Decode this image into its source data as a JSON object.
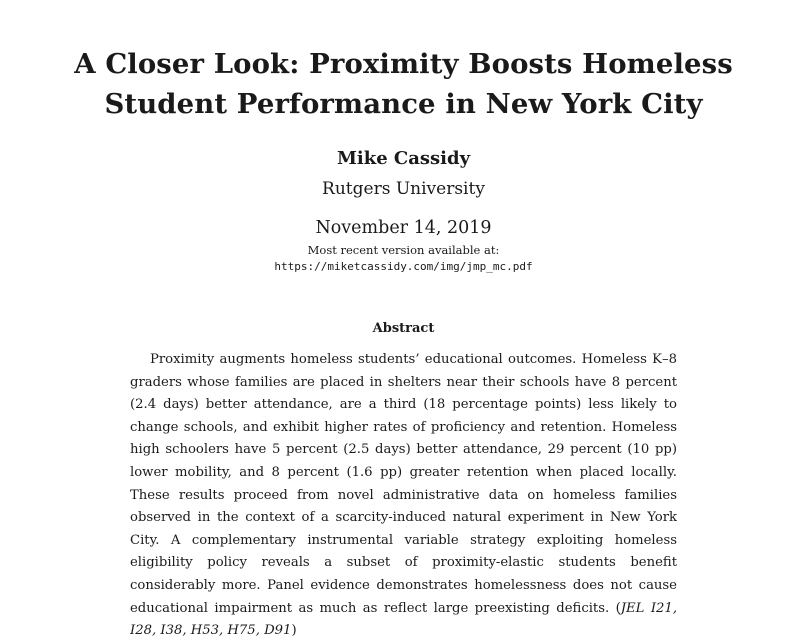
{
  "paper": {
    "title": "A Closer Look: Proximity Boosts Homeless Student Performance in New York City",
    "author": "Mike Cassidy",
    "affiliation": "Rutgers University",
    "date": "November 14, 2019",
    "version_note": "Most recent version available at:",
    "version_url": "https://miketcassidy.com/img/jmp_mc.pdf"
  },
  "abstract": {
    "heading": "Abstract",
    "body": "Proximity augments homeless students’ educational outcomes. Homeless K–8 graders whose families are placed in shelters near their schools have 8 percent (2.4 days) better attendance, are a third (18 percentage points) less likely to change schools, and exhibit higher rates of proficiency and retention. Homeless high schoolers have 5 percent (2.5 days) better attendance, 29 percent (10 pp) lower mobility, and 8 percent (1.6 pp) greater retention when placed locally. These results proceed from novel administrative data on homeless families observed in the context of a scarcity-induced natural experiment in New York City. A complementary instrumental variable strategy exploiting homeless eligibility policy reveals a subset of proximity-elastic students benefit considerably more. Panel evidence demonstrates homelessness does not cause educational impairment as much as reflect large preexisting deficits.",
    "jel_open": " (",
    "jel_codes": "JEL I21, I28, I38, H53, H75, D91",
    "jel_close": ")"
  }
}
